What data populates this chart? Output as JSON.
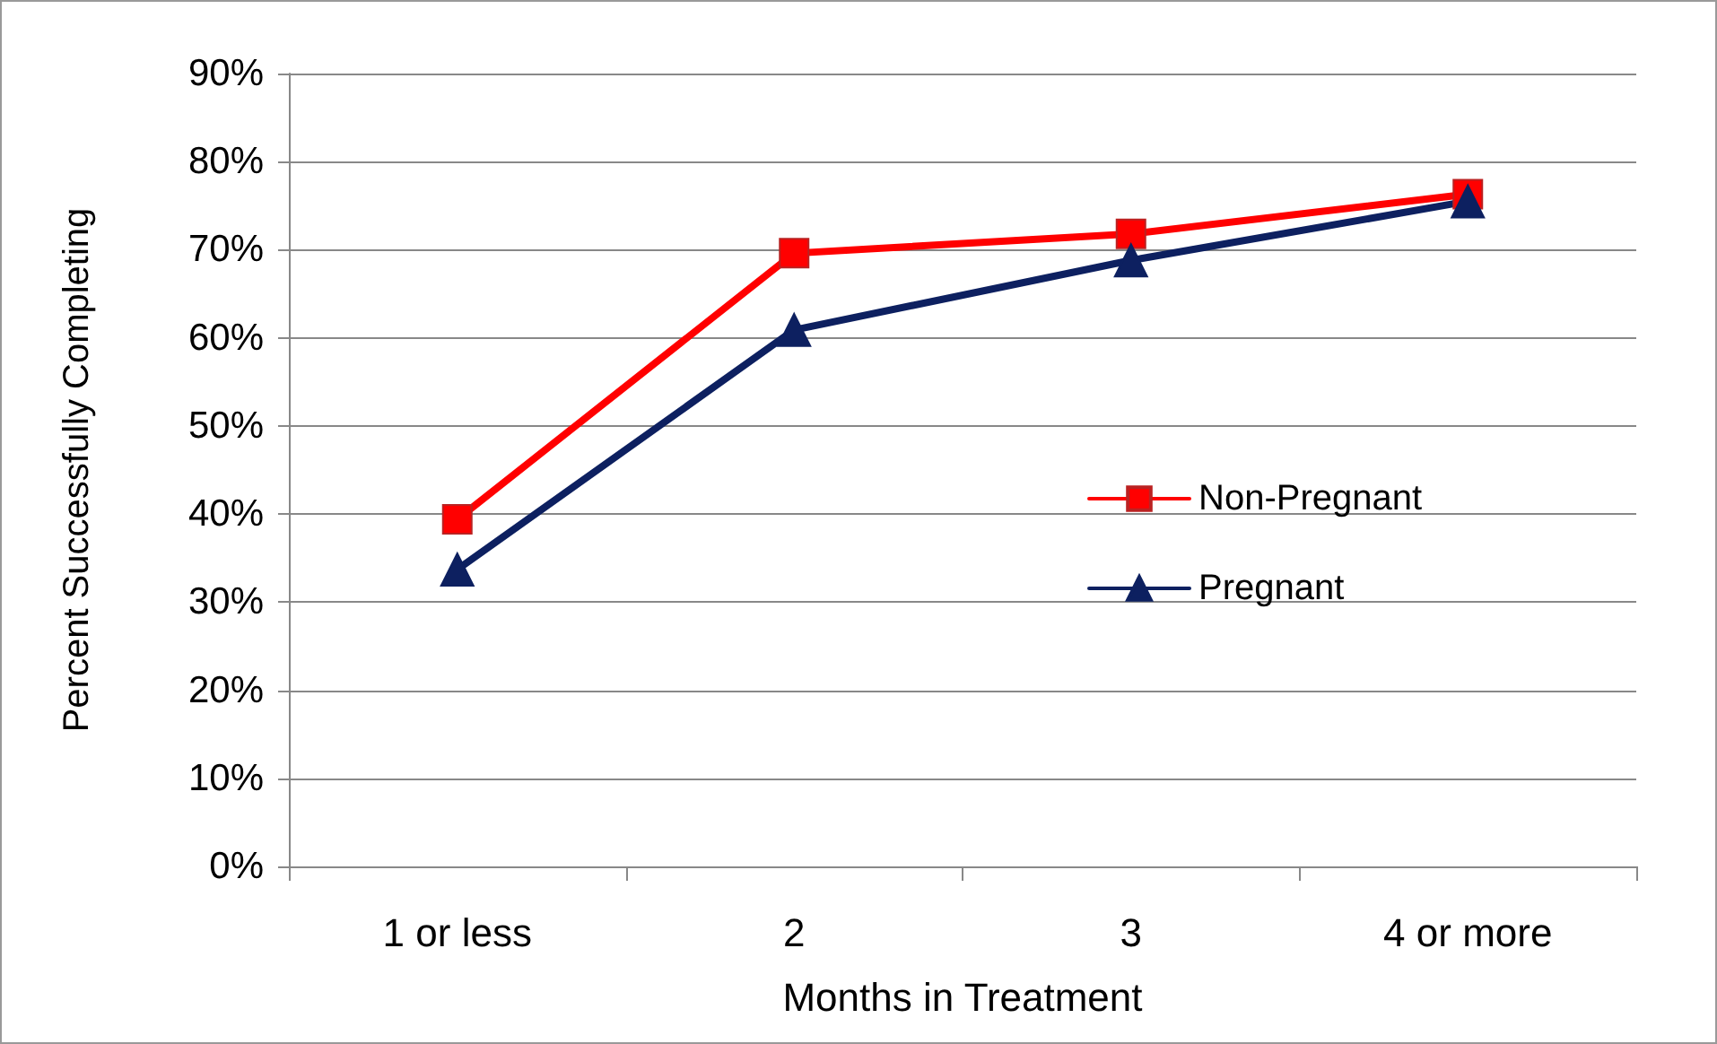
{
  "chart_data": {
    "type": "line",
    "xlabel": "Months in Treatment",
    "ylabel": "Percent Successfully Completing",
    "categories": [
      "1 or less",
      "2",
      "3",
      "4 or more"
    ],
    "series": [
      {
        "name": "Non-Pregnant",
        "color": "#ff0000",
        "marker": "square",
        "values": [
          39.4,
          69.6,
          71.8,
          76.3
        ]
      },
      {
        "name": "Pregnant",
        "color": "#0d2060",
        "marker": "triangle",
        "values": [
          33.7,
          60.9,
          68.8,
          75.5
        ]
      }
    ],
    "ylim": [
      0,
      90
    ],
    "yticks": [
      {
        "value": 0,
        "label": "0%"
      },
      {
        "value": 10,
        "label": "10%"
      },
      {
        "value": 20,
        "label": "20%"
      },
      {
        "value": 30,
        "label": "30%"
      },
      {
        "value": 40,
        "label": "40%"
      },
      {
        "value": 50,
        "label": "50%"
      },
      {
        "value": 60,
        "label": "60%"
      },
      {
        "value": 70,
        "label": "70%"
      },
      {
        "value": 80,
        "label": "80%"
      },
      {
        "value": 90,
        "label": "90%"
      }
    ],
    "grid": "y",
    "legend": "right",
    "line_style": "solid"
  }
}
